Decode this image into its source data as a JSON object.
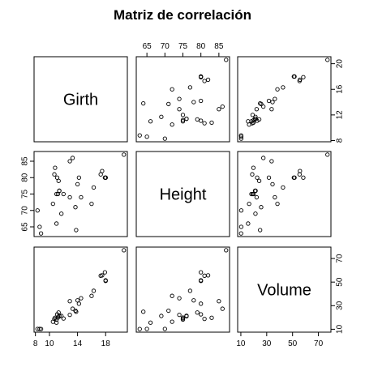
{
  "chart_data": {
    "type": "scatter",
    "title": "Matriz de correlación",
    "variables": [
      "Girth",
      "Height",
      "Volume"
    ],
    "observations": [
      {
        "Girth": 8.3,
        "Height": 70,
        "Volume": 10.3
      },
      {
        "Girth": 8.6,
        "Height": 65,
        "Volume": 10.3
      },
      {
        "Girth": 8.8,
        "Height": 63,
        "Volume": 10.2
      },
      {
        "Girth": 10.5,
        "Height": 72,
        "Volume": 16.4
      },
      {
        "Girth": 10.7,
        "Height": 81,
        "Volume": 18.8
      },
      {
        "Girth": 10.8,
        "Height": 83,
        "Volume": 19.7
      },
      {
        "Girth": 11.0,
        "Height": 66,
        "Volume": 15.6
      },
      {
        "Girth": 11.0,
        "Height": 75,
        "Volume": 18.2
      },
      {
        "Girth": 11.1,
        "Height": 80,
        "Volume": 22.6
      },
      {
        "Girth": 11.2,
        "Height": 75,
        "Volume": 19.9
      },
      {
        "Girth": 11.3,
        "Height": 79,
        "Volume": 24.2
      },
      {
        "Girth": 11.4,
        "Height": 76,
        "Volume": 21.0
      },
      {
        "Girth": 11.4,
        "Height": 76,
        "Volume": 21.4
      },
      {
        "Girth": 11.7,
        "Height": 69,
        "Volume": 21.3
      },
      {
        "Girth": 12.0,
        "Height": 75,
        "Volume": 19.1
      },
      {
        "Girth": 12.9,
        "Height": 74,
        "Volume": 22.2
      },
      {
        "Girth": 12.9,
        "Height": 85,
        "Volume": 33.8
      },
      {
        "Girth": 13.3,
        "Height": 86,
        "Volume": 27.4
      },
      {
        "Girth": 13.7,
        "Height": 71,
        "Volume": 25.7
      },
      {
        "Girth": 13.8,
        "Height": 64,
        "Volume": 24.9
      },
      {
        "Girth": 14.0,
        "Height": 78,
        "Volume": 34.5
      },
      {
        "Girth": 14.2,
        "Height": 80,
        "Volume": 31.7
      },
      {
        "Girth": 14.5,
        "Height": 74,
        "Volume": 36.3
      },
      {
        "Girth": 16.0,
        "Height": 72,
        "Volume": 38.3
      },
      {
        "Girth": 16.3,
        "Height": 77,
        "Volume": 42.6
      },
      {
        "Girth": 17.3,
        "Height": 81,
        "Volume": 55.4
      },
      {
        "Girth": 17.5,
        "Height": 82,
        "Volume": 55.7
      },
      {
        "Girth": 17.9,
        "Height": 80,
        "Volume": 58.3
      },
      {
        "Girth": 18.0,
        "Height": 80,
        "Volume": 51.5
      },
      {
        "Girth": 18.0,
        "Height": 80,
        "Volume": 51.0
      },
      {
        "Girth": 20.6,
        "Height": 87,
        "Volume": 77.0
      }
    ],
    "axes": {
      "Girth": {
        "ticks": [
          8,
          10,
          14,
          18
        ],
        "tick_labels": [
          "8",
          "10",
          "14",
          "18"
        ],
        "odd_ticks": [
          12,
          16,
          20
        ],
        "odd_tick_labels": [
          "12",
          "16",
          "20"
        ],
        "range": [
          8.3,
          20.6
        ]
      },
      "Height": {
        "ticks": [
          65,
          75,
          85
        ],
        "tick_labels": [
          "65",
          "75",
          "85"
        ],
        "odd_ticks": [
          70,
          80
        ],
        "odd_tick_labels": [
          "70",
          "80"
        ],
        "top_tick_labels": [
          "65",
          "70",
          "75",
          "80",
          "85"
        ],
        "range": [
          63,
          87
        ]
      },
      "Volume": {
        "ticks": [
          10,
          30,
          50,
          70
        ],
        "tick_labels": [
          "10",
          "30",
          "50",
          "70"
        ],
        "odd_ticks": [
          10,
          30,
          50,
          70
        ],
        "odd_tick_labels": [
          "10",
          "30",
          "50",
          "70"
        ],
        "bottom_tick_labels": [
          "10",
          "30",
          "50",
          "70"
        ],
        "range": [
          10.2,
          77.0
        ]
      }
    },
    "grid": false,
    "legend": "none"
  }
}
